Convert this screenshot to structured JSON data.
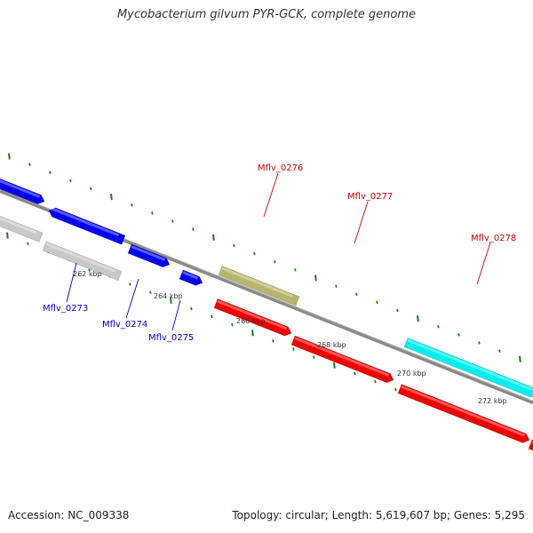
{
  "title": "Mycobacterium gilvum PYR-GCK, complete genome",
  "accession_text": "Accession: NC_009338",
  "stats_text": "Topology: circular; Length: 5,619,607 bp; Genes: 5,295",
  "colors": {
    "backbone": "#8a8a8a",
    "tick": "#1f7a1f",
    "label_blue": "#0000cc",
    "label_red": "#cc0000"
  },
  "scale_labels": [
    "262 kbp",
    "264 kbp",
    "266 kbp",
    "268 kbp",
    "270 kbp",
    "272 kbp"
  ],
  "features": [
    {
      "kind": "gene",
      "track": "upper",
      "color": "#0000ee",
      "strand": "+"
    },
    {
      "kind": "gene",
      "track": "upper",
      "color": "#0000ee",
      "strand": "-"
    },
    {
      "kind": "gene",
      "track": "upper",
      "color": "#0000ee",
      "strand": "+"
    },
    {
      "kind": "gene",
      "track": "upper",
      "color": "#0000ee",
      "strand": "+"
    },
    {
      "kind": "gene",
      "track": "upper",
      "color": "#b8b46a",
      "strand": "none"
    },
    {
      "kind": "gene",
      "track": "upper",
      "color": "#00eeee",
      "strand": "+"
    },
    {
      "kind": "cds",
      "track": "lower",
      "color": "#c8c8c8",
      "strand": "none"
    },
    {
      "kind": "cds",
      "track": "lower",
      "color": "#c8c8c8",
      "strand": "none"
    },
    {
      "kind": "cds",
      "track": "lower",
      "color": "#ee0000",
      "strand": "+"
    },
    {
      "kind": "cds",
      "track": "lower",
      "color": "#ee0000",
      "strand": "+"
    },
    {
      "kind": "cds",
      "track": "lower",
      "color": "#ee0000",
      "strand": "+"
    },
    {
      "kind": "cds",
      "track": "lower",
      "color": "#ee0000",
      "strand": "+"
    }
  ],
  "gene_labels": [
    {
      "text": "Mflv_0273",
      "color": "#0000cc"
    },
    {
      "text": "Mflv_0274",
      "color": "#0000cc"
    },
    {
      "text": "Mflv_0275",
      "color": "#0000cc"
    },
    {
      "text": "Mflv_0276",
      "color": "#cc0000"
    },
    {
      "text": "Mflv_0277",
      "color": "#cc0000"
    },
    {
      "text": "Mflv_0278",
      "color": "#cc0000"
    }
  ]
}
